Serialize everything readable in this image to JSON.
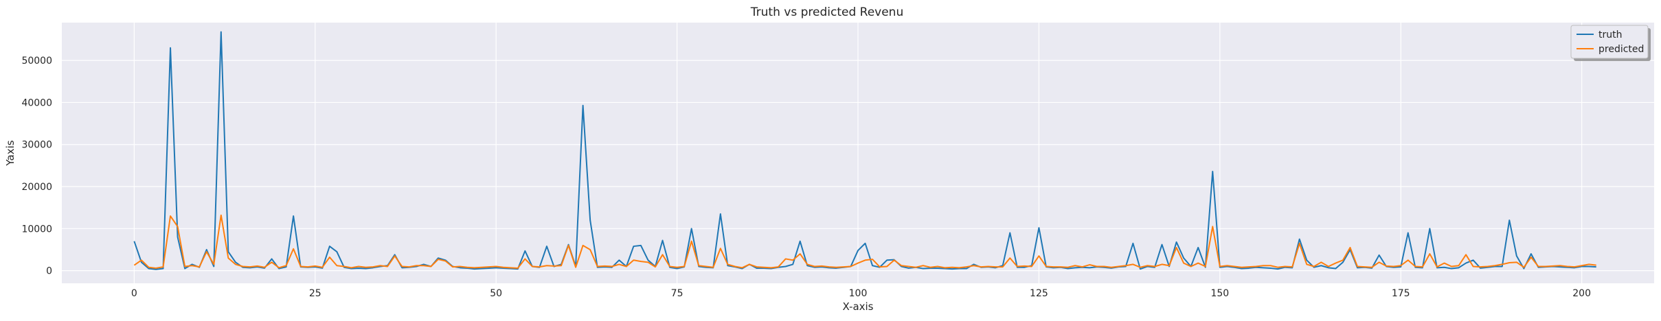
{
  "chart_data": {
    "type": "line",
    "title": "Truth vs predicted Revenu",
    "xlabel": "X-axis",
    "ylabel": "Yaxis",
    "xlim": [
      -10,
      210
    ],
    "ylim": [
      -3000,
      59000
    ],
    "xticks": [
      0,
      25,
      50,
      75,
      100,
      125,
      150,
      175,
      200
    ],
    "yticks": [
      0,
      10000,
      20000,
      30000,
      40000,
      50000
    ],
    "grid": true,
    "legend_position": "top-right",
    "background": "#eaeaf2",
    "series": [
      {
        "name": "truth",
        "color": "#1f77b4",
        "values": [
          7000,
          2000,
          500,
          300,
          500,
          53000,
          8000,
          500,
          1500,
          800,
          5000,
          1000,
          56800,
          4500,
          2000,
          800,
          700,
          900,
          600,
          2800,
          500,
          900,
          13000,
          900,
          800,
          900,
          600,
          5800,
          4500,
          800,
          500,
          600,
          500,
          700,
          1000,
          1200,
          3800,
          700,
          800,
          1000,
          1500,
          1000,
          3000,
          2500,
          1000,
          700,
          600,
          400,
          500,
          600,
          700,
          600,
          500,
          400,
          4700,
          1000,
          800,
          5800,
          1000,
          1500,
          6200,
          1000,
          39300,
          12000,
          800,
          900,
          800,
          2500,
          1000,
          5800,
          6000,
          2500,
          1000,
          7200,
          800,
          500,
          900,
          10000,
          1000,
          800,
          700,
          13500,
          1200,
          900,
          500,
          1500,
          600,
          600,
          500,
          800,
          1000,
          1500,
          7000,
          1200,
          800,
          900,
          700,
          600,
          800,
          1000,
          4800,
          6500,
          1200,
          800,
          2500,
          2600,
          1000,
          600,
          800,
          500,
          600,
          600,
          500,
          400,
          500,
          500,
          1500,
          800,
          900,
          700,
          1200,
          9000,
          800,
          800,
          1200,
          10200,
          900,
          700,
          800,
          500,
          700,
          800,
          700,
          900,
          800,
          600,
          900,
          1000,
          6500,
          400,
          1000,
          800,
          6200,
          1000,
          6800,
          3000,
          1000,
          5500,
          800,
          23600,
          800,
          1000,
          800,
          500,
          600,
          800,
          700,
          600,
          400,
          800,
          700,
          7500,
          2500,
          800,
          1200,
          700,
          500,
          2000,
          5000,
          700,
          800,
          600,
          3700,
          1000,
          800,
          900,
          9000,
          800,
          700,
          10000,
          700,
          800,
          500,
          700,
          1800,
          2500,
          600,
          800,
          1000,
          1000,
          12000,
          3500,
          500,
          4000,
          800,
          900,
          1000,
          900,
          800,
          700,
          1000,
          1000,
          900
        ]
      },
      {
        "name": "predicted",
        "color": "#ff7f0e",
        "values": [
          1300,
          2500,
          800,
          600,
          900,
          13000,
          10500,
          1000,
          1200,
          900,
          4500,
          1500,
          13200,
          3000,
          1500,
          1000,
          900,
          1100,
          800,
          2000,
          700,
          1200,
          5200,
          1000,
          900,
          1100,
          800,
          3200,
          1200,
          1000,
          700,
          1000,
          800,
          900,
          1200,
          1000,
          3500,
          1000,
          900,
          1200,
          1200,
          1000,
          2700,
          2300,
          900,
          1000,
          800,
          700,
          800,
          900,
          1000,
          800,
          700,
          600,
          2800,
          1000,
          900,
          1200,
          1100,
          1200,
          6000,
          800,
          6000,
          5000,
          1000,
          1100,
          1000,
          1500,
          1000,
          2500,
          2200,
          2000,
          900,
          3800,
          1000,
          800,
          1000,
          7000,
          1200,
          1000,
          800,
          5300,
          1500,
          1000,
          700,
          1500,
          900,
          800,
          700,
          900,
          2800,
          2500,
          4000,
          1500,
          1000,
          1100,
          900,
          800,
          900,
          1000,
          1800,
          2500,
          2700,
          900,
          1000,
          2500,
          1200,
          1000,
          800,
          1200,
          800,
          1000,
          700,
          800,
          700,
          900,
          1200,
          900,
          1000,
          900,
          900,
          3000,
          1000,
          1100,
          1000,
          3500,
          1000,
          900,
          900,
          800,
          1200,
          900,
          1400,
          1000,
          1000,
          800,
          1000,
          1200,
          1500,
          800,
          1200,
          1000,
          1500,
          1200,
          5500,
          1800,
          1000,
          1800,
          1000,
          10500,
          1000,
          1200,
          1000,
          800,
          900,
          1000,
          1200,
          1200,
          800,
          1000,
          900,
          6500,
          1500,
          1000,
          2000,
          1000,
          1800,
          2500,
          5500,
          1000,
          900,
          800,
          2000,
          1100,
          1000,
          1200,
          2500,
          1000,
          900,
          4000,
          900,
          1800,
          1000,
          1200,
          3800,
          1000,
          900,
          1000,
          1200,
          1500,
          1900,
          2000,
          800,
          3200,
          1000,
          1000,
          1100,
          1200,
          1000,
          900,
          1200,
          1500,
          1300
        ]
      }
    ]
  }
}
